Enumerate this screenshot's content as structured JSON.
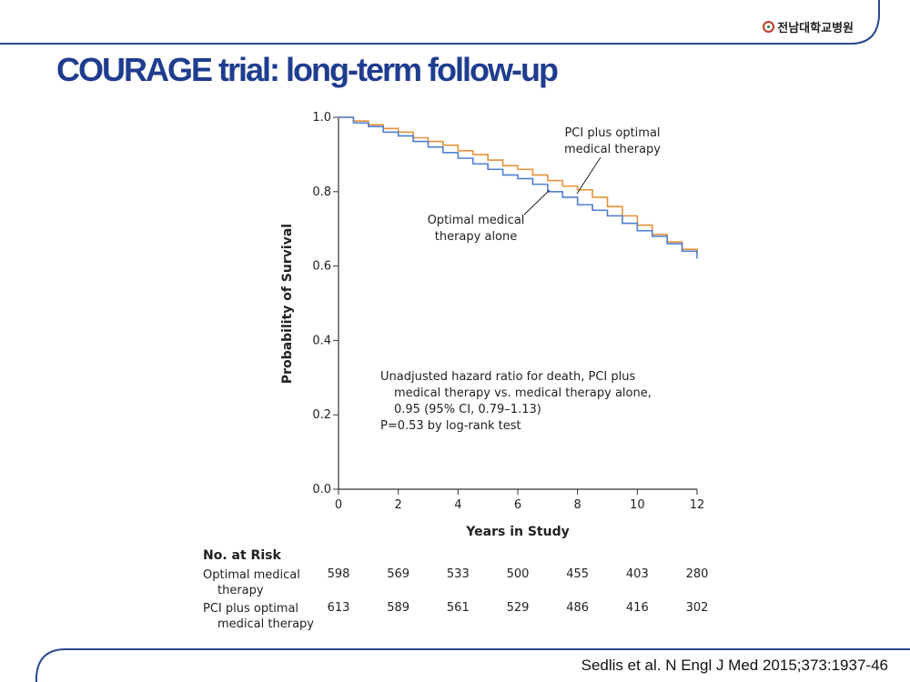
{
  "header": {
    "logo_text": "전남대학교병원",
    "logo_icon": "hospital-seal-icon",
    "title": "COURAGE trial: long-term follow-up"
  },
  "colors": {
    "title": "#1f3d8f",
    "frame": "#2b4a8f",
    "pci_series": "#e6923a",
    "omt_series": "#4f7fd0"
  },
  "chart_data": {
    "type": "line",
    "xlabel": "Years in Study",
    "ylabel": "Probability of Survival",
    "xlim": [
      0,
      12
    ],
    "ylim": [
      0.0,
      1.0
    ],
    "x_ticks": [
      0,
      2,
      4,
      6,
      8,
      10,
      12
    ],
    "y_ticks": [
      "0.0",
      "0.2",
      "0.4",
      "0.6",
      "0.8",
      "1.0"
    ],
    "grid": false,
    "series": [
      {
        "name": "PCI plus optimal medical therapy",
        "color": "#e6923a",
        "x": [
          0,
          0.5,
          1,
          1.5,
          2,
          2.5,
          3,
          3.5,
          4,
          4.5,
          5,
          5.5,
          6,
          6.5,
          7,
          7.5,
          8,
          8.5,
          9,
          9.5,
          10,
          10.5,
          11,
          11.5,
          12
        ],
        "y": [
          1.0,
          0.99,
          0.98,
          0.97,
          0.96,
          0.945,
          0.935,
          0.925,
          0.91,
          0.9,
          0.885,
          0.87,
          0.86,
          0.845,
          0.83,
          0.815,
          0.805,
          0.785,
          0.76,
          0.735,
          0.71,
          0.685,
          0.665,
          0.645,
          0.635
        ]
      },
      {
        "name": "Optimal medical therapy alone",
        "color": "#4f7fd0",
        "x": [
          0,
          0.5,
          1,
          1.5,
          2,
          2.5,
          3,
          3.5,
          4,
          4.5,
          5,
          5.5,
          6,
          6.5,
          7,
          7.5,
          8,
          8.5,
          9,
          9.5,
          10,
          10.5,
          11,
          11.5,
          12
        ],
        "y": [
          1.0,
          0.985,
          0.975,
          0.96,
          0.95,
          0.935,
          0.92,
          0.905,
          0.89,
          0.875,
          0.86,
          0.845,
          0.835,
          0.82,
          0.8,
          0.785,
          0.765,
          0.75,
          0.735,
          0.715,
          0.695,
          0.68,
          0.66,
          0.64,
          0.62
        ]
      }
    ],
    "annotations": {
      "pci_label_line1": "PCI plus optimal",
      "pci_label_line2": "medical therapy",
      "omt_label_line1": "Optimal medical",
      "omt_label_line2": "therapy alone",
      "hr_line1": "Unadjusted hazard ratio for death, PCI plus",
      "hr_line2": "medical therapy vs. medical therapy alone,",
      "hr_line3": "0.95 (95% CI, 0.79–1.13)",
      "hr_line4": "P=0.53 by log-rank test"
    }
  },
  "risk_table": {
    "heading": "No. at Risk",
    "rows": [
      {
        "label_line1": "Optimal medical",
        "label_line2": "therapy",
        "values": [
          "598",
          "569",
          "533",
          "500",
          "455",
          "403",
          "280"
        ]
      },
      {
        "label_line1": "PCI plus optimal",
        "label_line2": "medical therapy",
        "values": [
          "613",
          "589",
          "561",
          "529",
          "486",
          "416",
          "302"
        ]
      }
    ]
  },
  "citation": "Sedlis et al. N Engl J Med 2015;373:1937-46"
}
